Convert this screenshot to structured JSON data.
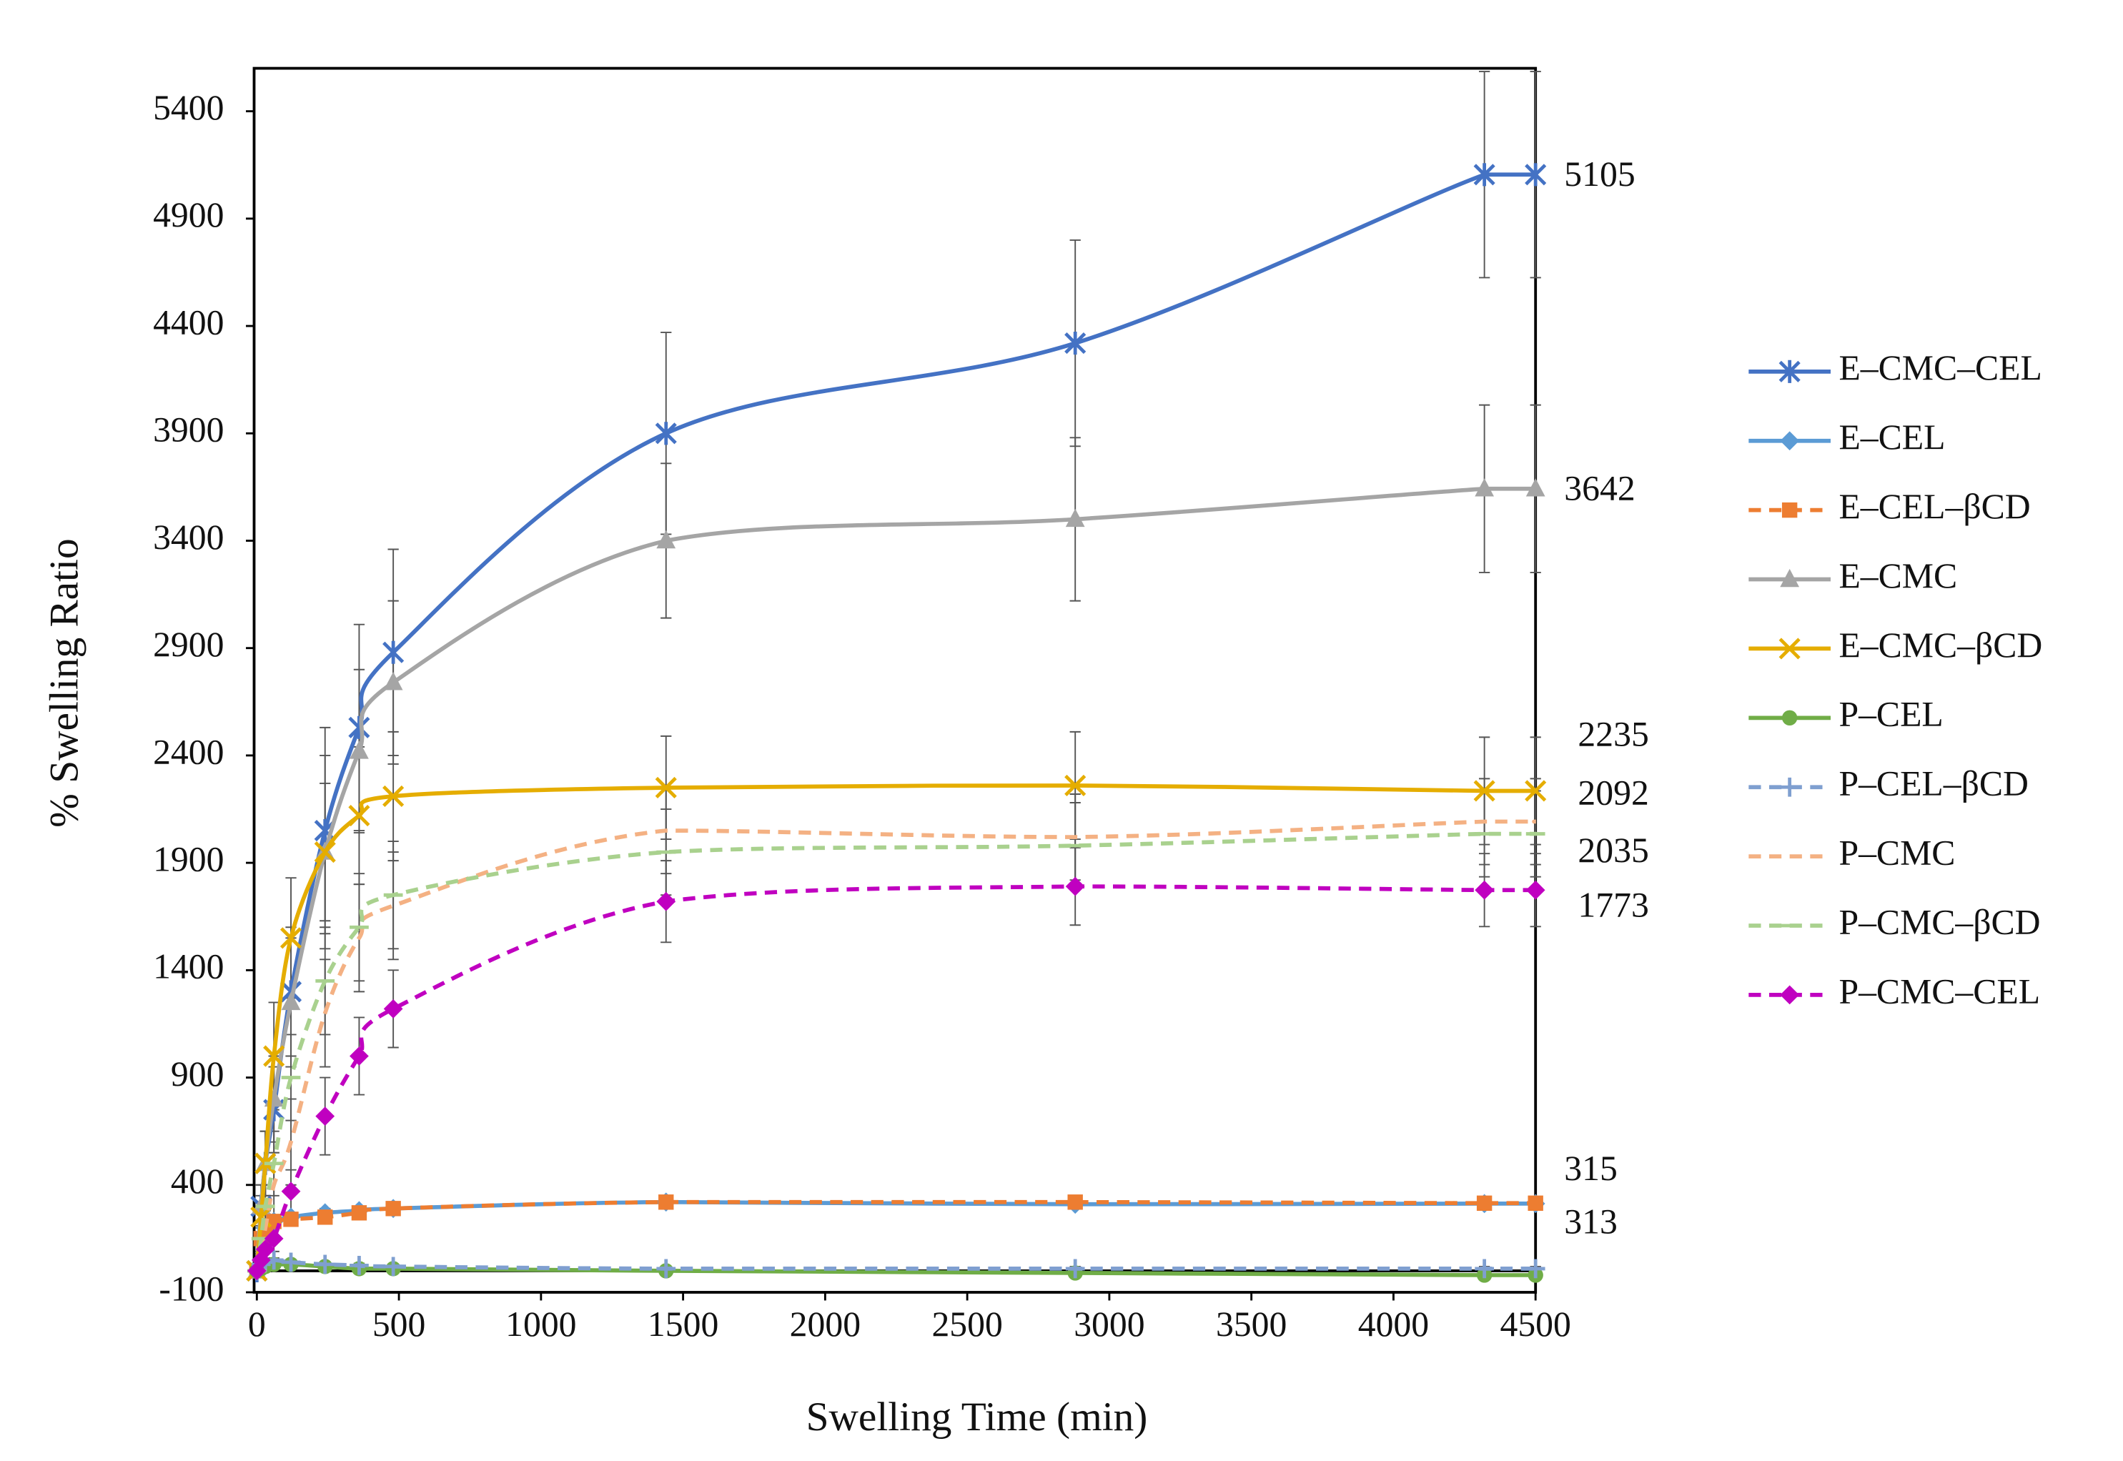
{
  "chart_data": {
    "type": "line",
    "xlabel": "Swelling Time (min)",
    "ylabel": "% Swelling Ratio",
    "x": [
      0,
      15,
      30,
      60,
      120,
      240,
      360,
      480,
      1440,
      2880,
      4320,
      4500
    ],
    "xlim": [
      0,
      4500
    ],
    "xticks": [
      0,
      500,
      1000,
      1500,
      2000,
      2500,
      3000,
      3500,
      4000,
      4500
    ],
    "ylim": [
      -100,
      5600
    ],
    "yticks": [
      -100,
      400,
      900,
      1400,
      1900,
      2400,
      2900,
      3400,
      3900,
      4400,
      4900,
      5400
    ],
    "grid": false,
    "legend": "right",
    "series": [
      {
        "name": "E–CMC–CEL",
        "color": "#4472c4",
        "marker": "asterisk",
        "dash": false,
        "values": [
          0,
          300,
          500,
          750,
          1300,
          2050,
          2530,
          2880,
          3900,
          4320,
          5105,
          5105
        ],
        "errors": [
          0,
          100,
          150,
          200,
          300,
          480,
          480,
          480,
          470,
          480,
          480,
          480
        ]
      },
      {
        "name": "E–CEL",
        "color": "#5b9bd5",
        "marker": "diamond",
        "dash": false,
        "values": [
          0,
          150,
          200,
          230,
          250,
          270,
          280,
          290,
          320,
          310,
          313,
          313
        ],
        "errors": [
          0,
          20,
          20,
          20,
          20,
          20,
          20,
          20,
          20,
          20,
          20,
          20
        ]
      },
      {
        "name": "E–CEL–βCD",
        "color": "#ed7d31",
        "marker": "square",
        "dash": true,
        "values": [
          0,
          150,
          200,
          230,
          240,
          250,
          270,
          290,
          320,
          320,
          315,
          315
        ],
        "errors": [
          0,
          20,
          20,
          20,
          20,
          20,
          20,
          20,
          20,
          20,
          20,
          20
        ]
      },
      {
        "name": "E–CMC",
        "color": "#a5a5a5",
        "marker": "triangle",
        "dash": false,
        "values": [
          0,
          300,
          500,
          800,
          1250,
          1950,
          2420,
          2740,
          3400,
          3500,
          3642,
          3642
        ],
        "errors": [
          0,
          100,
          150,
          200,
          300,
          450,
          380,
          380,
          360,
          380,
          390,
          390
        ]
      },
      {
        "name": "E–CMC–βCD",
        "color": "#e5ad00",
        "marker": "x",
        "dash": false,
        "values": [
          0,
          250,
          500,
          1000,
          1550,
          1950,
          2120,
          2210,
          2250,
          2260,
          2235,
          2235
        ],
        "errors": [
          0,
          100,
          150,
          250,
          280,
          320,
          320,
          300,
          240,
          250,
          250,
          250
        ]
      },
      {
        "name": "P–CEL",
        "color": "#70ad47",
        "marker": "circle",
        "dash": false,
        "values": [
          0,
          10,
          20,
          30,
          30,
          20,
          10,
          10,
          0,
          -10,
          -20,
          -20
        ],
        "errors": [
          0,
          10,
          10,
          10,
          10,
          10,
          10,
          10,
          10,
          10,
          10,
          10
        ]
      },
      {
        "name": "P–CEL–βCD",
        "color": "#7f9fd0",
        "marker": "plus",
        "dash": true,
        "values": [
          0,
          30,
          40,
          50,
          40,
          30,
          25,
          20,
          10,
          10,
          10,
          10
        ],
        "errors": [
          0,
          10,
          10,
          10,
          10,
          10,
          10,
          10,
          10,
          10,
          10,
          10
        ]
      },
      {
        "name": "P–CMC",
        "color": "#f4b183",
        "marker": "none",
        "dash": true,
        "values": [
          0,
          100,
          200,
          400,
          600,
          1200,
          1550,
          1700,
          2050,
          2020,
          2092,
          2092
        ],
        "errors": [
          0,
          50,
          80,
          150,
          200,
          250,
          250,
          250,
          200,
          200,
          200,
          200
        ]
      },
      {
        "name": "P–CMC–βCD",
        "color": "#a9d18e",
        "marker": "dash",
        "dash": true,
        "values": [
          0,
          150,
          300,
          500,
          900,
          1350,
          1600,
          1750,
          1950,
          1980,
          2035,
          2035
        ],
        "errors": [
          0,
          60,
          100,
          150,
          200,
          250,
          250,
          250,
          200,
          200,
          200,
          200
        ]
      },
      {
        "name": "P–CMC–CEL",
        "color": "#c000c0",
        "marker": "diamond",
        "dash": true,
        "values": [
          0,
          50,
          100,
          150,
          370,
          720,
          1000,
          1220,
          1720,
          1790,
          1773,
          1773
        ],
        "errors": [
          0,
          30,
          50,
          60,
          100,
          180,
          180,
          180,
          190,
          180,
          170,
          170
        ]
      }
    ]
  }
}
